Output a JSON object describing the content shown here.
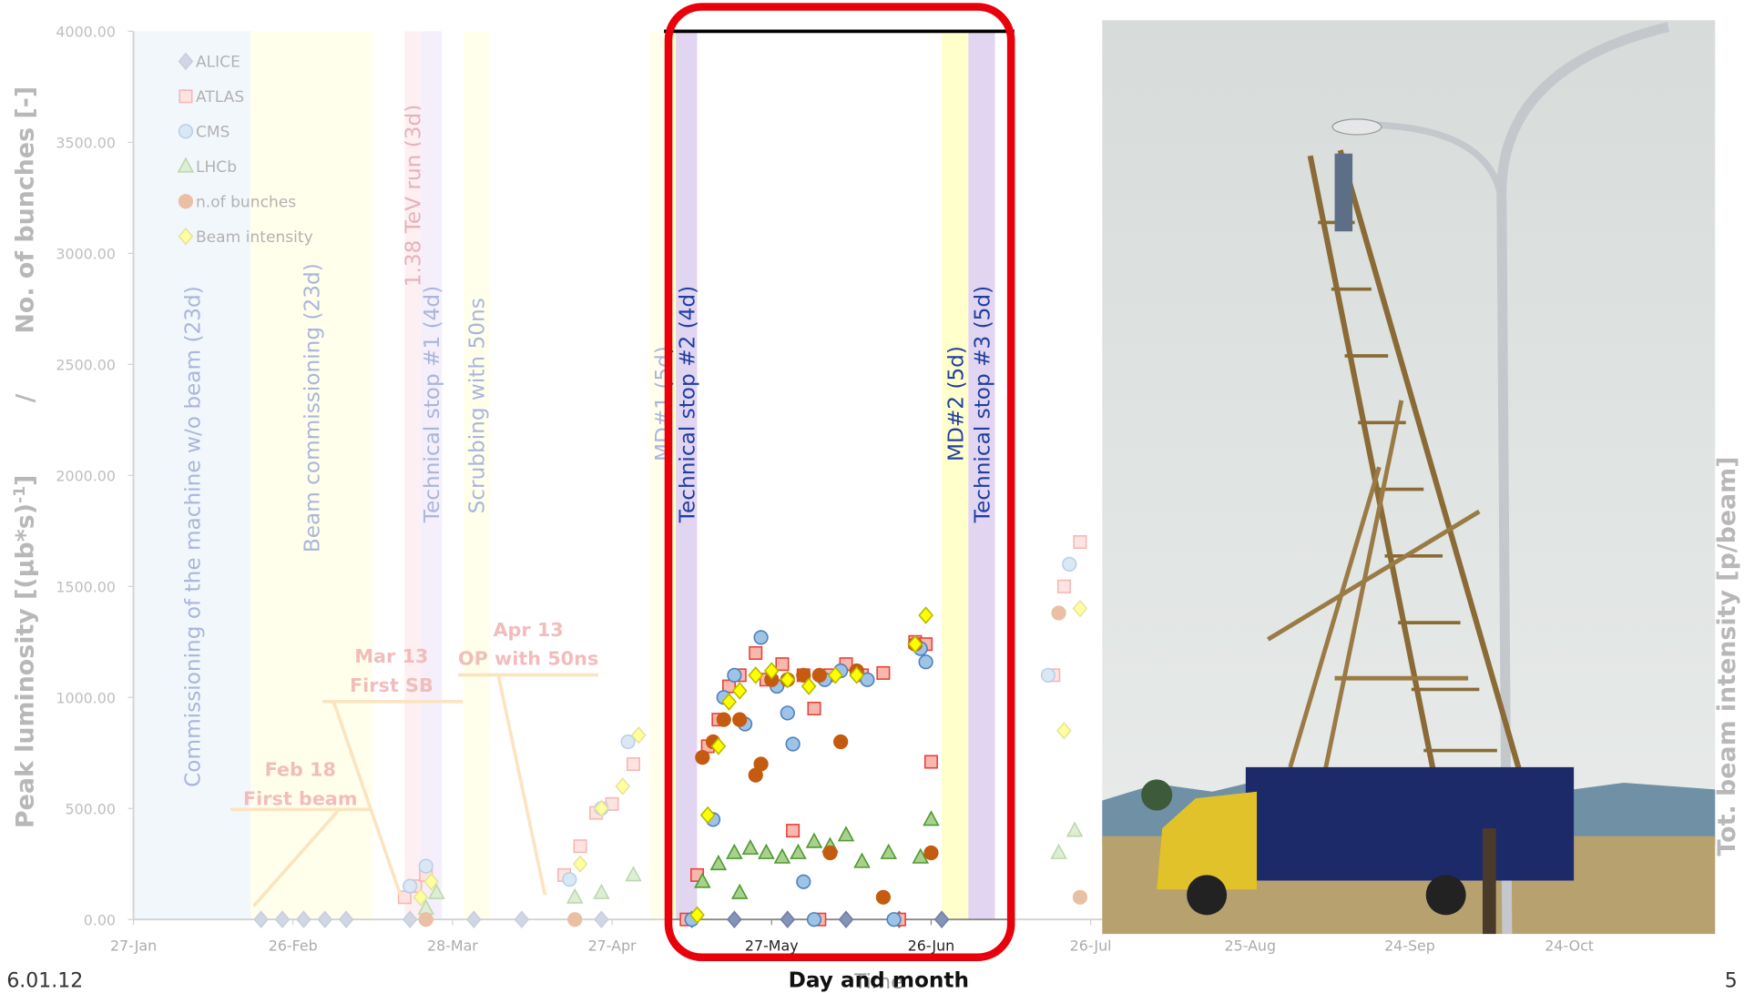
{
  "chart_data": {
    "type": "scatter",
    "y_title": {
      "main": "Peak luminosity [(μb*s)",
      "sup": "-1",
      "close": "]",
      "separator": "/",
      "second": "No. of bunches [-]"
    },
    "y2_title": "Tot. beam intensity [p/beam]",
    "x_title": "Day and month",
    "x_title_behind": "Time",
    "ylim": [
      0,
      4000
    ],
    "yticks": [
      {
        "value": 0,
        "label": "0.00"
      },
      {
        "value": 500,
        "label": "500.00"
      },
      {
        "value": 1000,
        "label": "1000.00"
      },
      {
        "value": 1500,
        "label": "1500.00"
      },
      {
        "value": 2000,
        "label": "2000.00"
      },
      {
        "value": 2500,
        "label": "2500.00"
      },
      {
        "value": 3000,
        "label": "3000.00"
      },
      {
        "value": 3500,
        "label": "3500.00"
      },
      {
        "value": 4000,
        "label": "4000.00"
      }
    ],
    "xlim": [
      "27-Jan",
      "20-Nov"
    ],
    "xticks": [
      "27-Jan",
      "26-Feb",
      "28-Mar",
      "27-Apr",
      "27-May",
      "26-Jun",
      "26-Jul",
      "25-Aug",
      "24-Sep",
      "24-Oct"
    ],
    "bands": [
      {
        "label": "Commissioning of the machine w/o beam (23d)",
        "start": "27-Jan",
        "end": "18-Feb",
        "color": "#dde9f7"
      },
      {
        "label": "Beam commissioning (23d)",
        "start": "18-Feb",
        "end": "13-Mar",
        "color": "#ffffcc"
      },
      {
        "label": "1.38 TeV run (3d)",
        "start": "19-Mar",
        "end": "22-Mar",
        "color": "#f9d6dc"
      },
      {
        "label": "Technical stop #1 (4d)",
        "start": "22-Mar",
        "end": "26-Mar",
        "color": "#e2d5f2"
      },
      {
        "label": "Scrubbing with 50ns",
        "start": "30-Mar",
        "end": "04-Apr",
        "color": "#ffffcc"
      },
      {
        "label": "MD#1 (5d)",
        "start": "04-May",
        "end": "09-May",
        "color": "#ffffcc"
      },
      {
        "label": "Technical stop #2 (4d)",
        "start": "09-May",
        "end": "13-May",
        "color": "#e2d5f2"
      },
      {
        "label": "MD#2 (5d)",
        "start": "28-Jun",
        "end": "03-Jul",
        "color": "#ffffcc"
      },
      {
        "label": "Technical stop #3 (5d)",
        "start": "03-Jul",
        "end": "08-Jul",
        "color": "#e2d5f2"
      }
    ],
    "annotations": [
      {
        "lines": [
          "Feb 18",
          "First beam"
        ]
      },
      {
        "lines": [
          "Mar 13",
          "First SB"
        ]
      },
      {
        "lines": [
          "Apr 13",
          "OP with 50ns"
        ]
      }
    ],
    "series": [
      {
        "name": "ALICE",
        "marker": "diamond",
        "color": "#6f7fa6",
        "fill": "#8494b8",
        "x": [
          "20-Feb",
          "24-Feb",
          "28-Feb",
          "04-Mar",
          "08-Mar",
          "20-Mar",
          "01-Apr",
          "10-Apr",
          "25-Apr",
          "12-May",
          "20-May",
          "30-May",
          "10-Jun",
          "20-Jun",
          "28-Jun"
        ],
        "values": [
          0,
          0,
          0,
          0,
          0,
          0,
          0,
          0,
          0,
          0,
          0,
          0,
          0,
          0,
          0
        ]
      },
      {
        "name": "ATLAS",
        "marker": "square",
        "color": "#e8413a",
        "fill": "#f9b8ad",
        "x": [
          "19-Mar",
          "21-Mar",
          "23-Mar",
          "18-Apr",
          "21-Apr",
          "24-Apr",
          "27-Apr",
          "01-May",
          "11-May",
          "13-May",
          "15-May",
          "17-May",
          "19-May",
          "21-May",
          "24-May",
          "26-May",
          "29-May",
          "31-May",
          "02-Jun",
          "04-Jun",
          "05-Jun",
          "07-Jun",
          "10-Jun",
          "13-Jun",
          "17-Jun",
          "20-Jun",
          "23-Jun",
          "25-Jun",
          "26-Jun",
          "19-Jul",
          "21-Jul",
          "24-Jul"
        ],
        "values": [
          100,
          150,
          200,
          200,
          330,
          480,
          520,
          700,
          0,
          200,
          780,
          900,
          1050,
          1100,
          1200,
          1080,
          1150,
          400,
          1100,
          950,
          0,
          1100,
          1150,
          1100,
          1110,
          0,
          1250,
          1240,
          710,
          1100,
          1500,
          1700
        ]
      },
      {
        "name": "CMS",
        "marker": "circle",
        "color": "#4f81bd",
        "fill": "#9dc3e6",
        "x": [
          "20-Mar",
          "23-Mar",
          "19-Apr",
          "25-Apr",
          "30-Apr",
          "12-May",
          "16-May",
          "18-May",
          "20-May",
          "22-May",
          "25-May",
          "28-May",
          "30-May",
          "31-May",
          "02-Jun",
          "04-Jun",
          "06-Jun",
          "09-Jun",
          "14-Jun",
          "19-Jun",
          "24-Jun",
          "25-Jun",
          "18-Jul",
          "22-Jul"
        ],
        "values": [
          150,
          240,
          180,
          500,
          800,
          0,
          450,
          1000,
          1100,
          880,
          1270,
          1050,
          930,
          790,
          170,
          0,
          1080,
          1120,
          1080,
          0,
          1220,
          1160,
          1100,
          1600
        ]
      },
      {
        "name": "LHCb",
        "marker": "triangle",
        "color": "#4e9a2e",
        "fill": "#a9d18e",
        "x": [
          "23-Mar",
          "25-Mar",
          "20-Apr",
          "25-Apr",
          "01-May",
          "14-May",
          "17-May",
          "20-May",
          "21-May",
          "23-May",
          "26-May",
          "29-May",
          "01-Jun",
          "04-Jun",
          "07-Jun",
          "10-Jun",
          "13-Jun",
          "18-Jun",
          "24-Jun",
          "26-Jun",
          "20-Jul",
          "23-Jul"
        ],
        "values": [
          50,
          120,
          100,
          120,
          200,
          170,
          250,
          300,
          120,
          320,
          300,
          280,
          300,
          350,
          330,
          380,
          260,
          300,
          280,
          450,
          300,
          400
        ]
      },
      {
        "name": "n.of bunches",
        "marker": "dot",
        "color": "#c55a11",
        "fill": "#c55a11",
        "x": [
          "23-Mar",
          "20-Apr",
          "14-May",
          "16-May",
          "18-May",
          "21-May",
          "24-May",
          "25-May",
          "27-May",
          "30-May",
          "02-Jun",
          "05-Jun",
          "07-Jun",
          "09-Jun",
          "12-Jun",
          "17-Jun",
          "23-Jun",
          "26-Jun",
          "20-Jul",
          "24-Jul"
        ],
        "values": [
          0,
          0,
          730,
          800,
          900,
          900,
          650,
          700,
          1080,
          1080,
          1100,
          1100,
          300,
          800,
          1120,
          100,
          1240,
          300,
          1380,
          100
        ]
      },
      {
        "name": "Beam intensity",
        "marker": "diamond",
        "color": "#b8b800",
        "fill": "#ffff00",
        "x": [
          "22-Mar",
          "24-Mar",
          "21-Apr",
          "25-Apr",
          "29-Apr",
          "02-May",
          "13-May",
          "15-May",
          "17-May",
          "19-May",
          "21-May",
          "24-May",
          "27-May",
          "30-May",
          "03-Jun",
          "08-Jun",
          "12-Jun",
          "23-Jun",
          "25-Jun",
          "21-Jul",
          "24-Jul"
        ],
        "values": [
          100,
          170,
          250,
          500,
          600,
          830,
          20,
          470,
          780,
          980,
          1030,
          1100,
          1120,
          1080,
          1050,
          1100,
          1100,
          1240,
          1370,
          850,
          1400
        ]
      }
    ],
    "footer": {
      "date": "6.01.12",
      "page": "5"
    }
  }
}
